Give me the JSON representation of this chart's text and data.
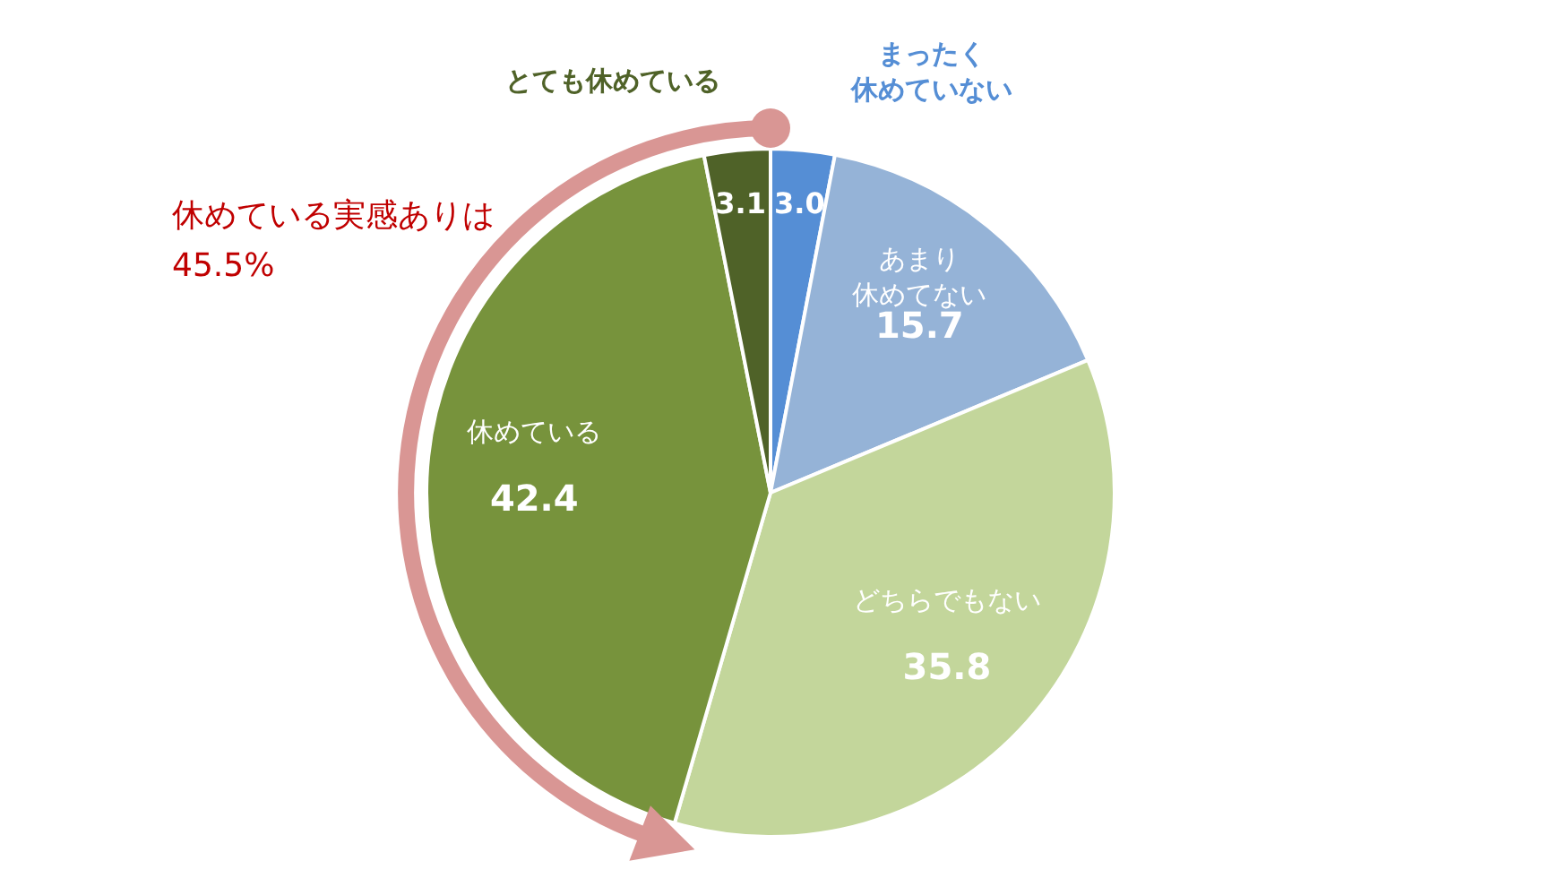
{
  "chart_data": {
    "type": "pie",
    "categories": [
      "まったく休めていない",
      "あまり休めてない",
      "どちらでもない",
      "休めている",
      "とても休めている"
    ],
    "values": [
      3.0,
      15.7,
      35.8,
      42.4,
      3.1
    ],
    "value_labels": [
      "3.0",
      "15.7",
      "35.8",
      "42.4",
      "3.1"
    ],
    "colors": [
      "#558ed5",
      "#95b3d7",
      "#c3d69b",
      "#77933c",
      "#4f6228"
    ],
    "annotations": [
      "休めている実感ありは\n45.5%"
    ]
  }
}
